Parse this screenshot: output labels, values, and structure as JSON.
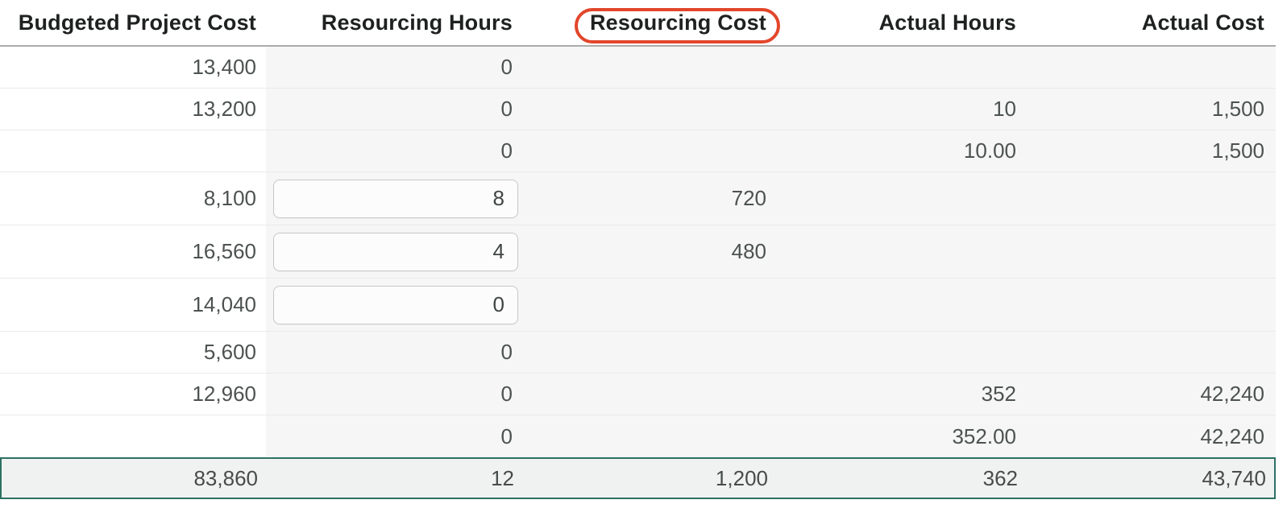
{
  "table": {
    "columns": [
      {
        "label": "Budgeted Project Cost"
      },
      {
        "label": "Resourcing Hours"
      },
      {
        "label": "Resourcing Cost",
        "annotated": true
      },
      {
        "label": "Actual Hours"
      },
      {
        "label": "Actual Cost"
      }
    ],
    "rows": [
      {
        "budgeted_project_cost": "13,400",
        "resourcing_hours": "0",
        "resourcing_cost": "",
        "actual_hours": "",
        "actual_cost": "",
        "hours_editable": false
      },
      {
        "budgeted_project_cost": "13,200",
        "resourcing_hours": "0",
        "resourcing_cost": "",
        "actual_hours": "10",
        "actual_cost": "1,500",
        "hours_editable": false
      },
      {
        "budgeted_project_cost": "",
        "resourcing_hours": "0",
        "resourcing_cost": "",
        "actual_hours": "10.00",
        "actual_cost": "1,500",
        "hours_editable": false
      },
      {
        "budgeted_project_cost": "8,100",
        "resourcing_hours": "8",
        "resourcing_cost": "720",
        "actual_hours": "",
        "actual_cost": "",
        "hours_editable": true
      },
      {
        "budgeted_project_cost": "16,560",
        "resourcing_hours": "4",
        "resourcing_cost": "480",
        "actual_hours": "",
        "actual_cost": "",
        "hours_editable": true
      },
      {
        "budgeted_project_cost": "14,040",
        "resourcing_hours": "0",
        "resourcing_cost": "",
        "actual_hours": "",
        "actual_cost": "",
        "hours_editable": true
      },
      {
        "budgeted_project_cost": "5,600",
        "resourcing_hours": "0",
        "resourcing_cost": "",
        "actual_hours": "",
        "actual_cost": "",
        "hours_editable": false
      },
      {
        "budgeted_project_cost": "12,960",
        "resourcing_hours": "0",
        "resourcing_cost": "",
        "actual_hours": "352",
        "actual_cost": "42,240",
        "hours_editable": false
      },
      {
        "budgeted_project_cost": "",
        "resourcing_hours": "0",
        "resourcing_cost": "",
        "actual_hours": "352.00",
        "actual_cost": "42,240",
        "hours_editable": false
      }
    ],
    "totals": {
      "budgeted_project_cost": "83,860",
      "resourcing_hours": "12",
      "resourcing_cost": "1,200",
      "actual_hours": "362",
      "actual_cost": "43,740"
    }
  },
  "annotation": {
    "shape": "rounded-rectangle",
    "target": "Resourcing Cost",
    "color": "#e2462b"
  },
  "colors": {
    "column_shade": "#f5f6f5",
    "totals_border": "#2d7164",
    "totals_background": "#f0f2f1",
    "header_text": "#1e2120",
    "value_text": "#4c5250"
  }
}
